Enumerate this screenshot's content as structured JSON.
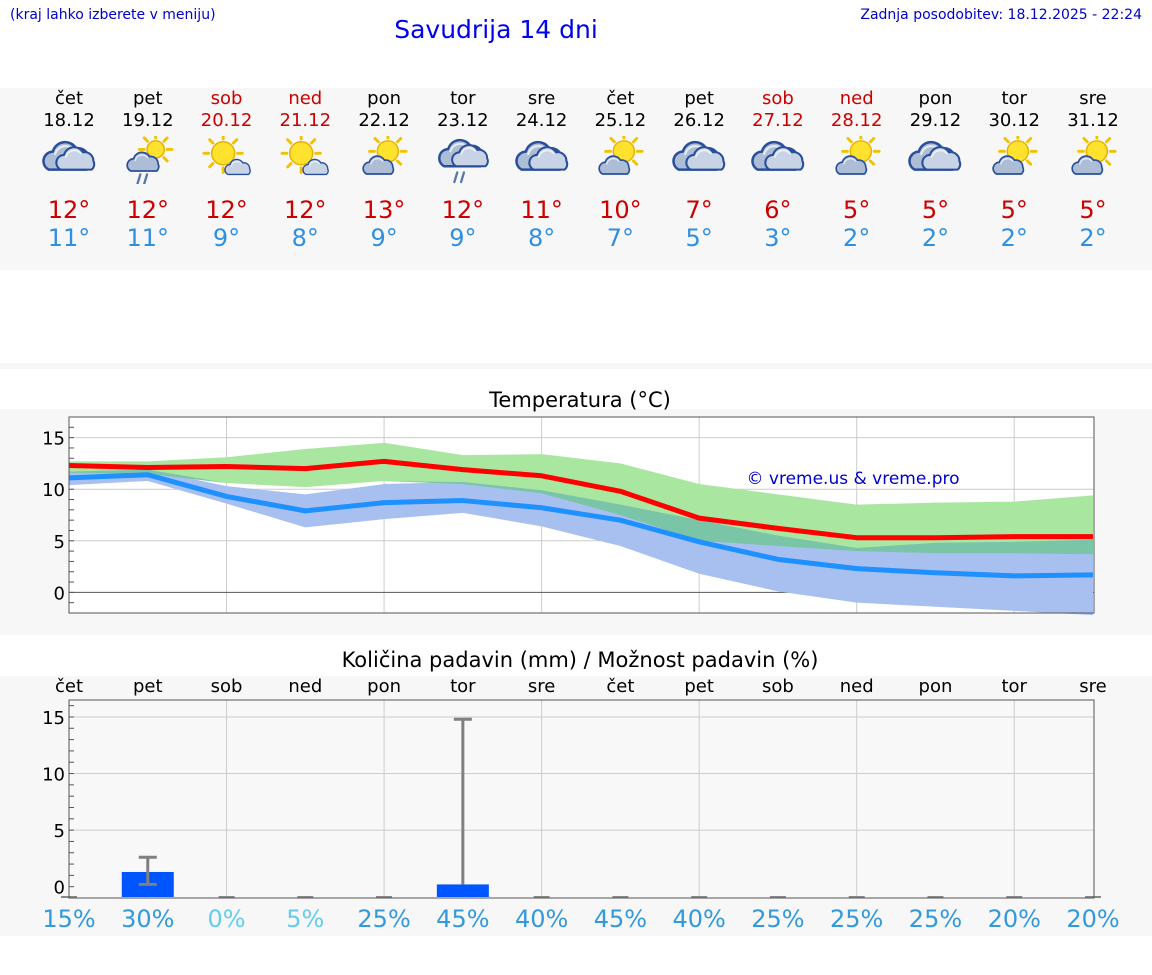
{
  "header": {
    "hint": "(kraj lahko izberete v meniju)",
    "title": "Savudrija 14 dni",
    "updated": "Zadnja posodobitev: 18.12.2025 - 22:24"
  },
  "days": [
    {
      "name": "čet",
      "date": "18.12",
      "weekend": false,
      "icon": "cloudy-icon",
      "tmax": "12°",
      "tmin": "11°"
    },
    {
      "name": "pet",
      "date": "19.12",
      "weekend": false,
      "icon": "sun-cloud-rain-icon",
      "tmax": "12°",
      "tmin": "11°"
    },
    {
      "name": "sob",
      "date": "20.12",
      "weekend": true,
      "icon": "sun-small-cloud-icon",
      "tmax": "12°",
      "tmin": "9°"
    },
    {
      "name": "ned",
      "date": "21.12",
      "weekend": true,
      "icon": "sun-small-cloud-icon",
      "tmax": "12°",
      "tmin": "8°"
    },
    {
      "name": "pon",
      "date": "22.12",
      "weekend": false,
      "icon": "sun-cloud-icon",
      "tmax": "13°",
      "tmin": "9°"
    },
    {
      "name": "tor",
      "date": "23.12",
      "weekend": false,
      "icon": "cloud-rain-icon",
      "tmax": "12°",
      "tmin": "9°"
    },
    {
      "name": "sre",
      "date": "24.12",
      "weekend": false,
      "icon": "cloudy-icon",
      "tmax": "11°",
      "tmin": "8°"
    },
    {
      "name": "čet",
      "date": "25.12",
      "weekend": false,
      "icon": "sun-cloud-icon",
      "tmax": "10°",
      "tmin": "7°"
    },
    {
      "name": "pet",
      "date": "26.12",
      "weekend": false,
      "icon": "cloudy-icon",
      "tmax": "7°",
      "tmin": "5°"
    },
    {
      "name": "sob",
      "date": "27.12",
      "weekend": true,
      "icon": "cloudy-icon",
      "tmax": "6°",
      "tmin": "3°"
    },
    {
      "name": "ned",
      "date": "28.12",
      "weekend": true,
      "icon": "sun-cloud-icon",
      "tmax": "5°",
      "tmin": "2°"
    },
    {
      "name": "pon",
      "date": "29.12",
      "weekend": false,
      "icon": "cloudy-icon",
      "tmax": "5°",
      "tmin": "2°"
    },
    {
      "name": "tor",
      "date": "30.12",
      "weekend": false,
      "icon": "sun-cloud-icon",
      "tmax": "5°",
      "tmin": "2°"
    },
    {
      "name": "sre",
      "date": "31.12",
      "weekend": false,
      "icon": "sun-cloud-icon",
      "tmax": "5°",
      "tmin": "2°"
    }
  ],
  "colors": {
    "max": "#ff0000",
    "min": "#1e90ff",
    "maxBand": "#a9e6a0",
    "minBand": "#a8c0f0",
    "overlap": "#7ac4a8",
    "bar": "#0055ff",
    "err": "#808080",
    "weekend": "#cc0000",
    "prob": "#3399dd",
    "probLow": "#66ccee"
  },
  "chart_data": [
    {
      "type": "line",
      "title": "Temperatura (°C)",
      "watermark": "© vreme.us & vreme.pro",
      "ylim": [
        -2,
        17
      ],
      "yticks": [
        0,
        5,
        10,
        15
      ],
      "x": [
        0,
        1,
        2,
        3,
        4,
        5,
        6,
        7,
        8,
        9,
        10,
        11,
        12,
        13
      ],
      "series": [
        {
          "name": "max",
          "values": [
            12.3,
            12.1,
            12.2,
            12.0,
            12.7,
            11.9,
            11.3,
            9.8,
            7.2,
            6.2,
            5.3,
            5.3,
            5.4,
            5.4
          ]
        },
        {
          "name": "min",
          "values": [
            11.1,
            11.4,
            9.3,
            7.9,
            8.7,
            8.9,
            8.2,
            7.0,
            4.9,
            3.2,
            2.3,
            1.9,
            1.6,
            1.7
          ]
        },
        {
          "name": "max_range_low",
          "values": [
            11.6,
            11.5,
            10.6,
            10.2,
            10.8,
            10.5,
            9.6,
            7.5,
            5.0,
            4.5,
            4.0,
            3.8,
            3.8,
            3.7
          ]
        },
        {
          "name": "max_range_high",
          "values": [
            12.7,
            12.7,
            13.1,
            13.9,
            14.5,
            13.3,
            13.4,
            12.5,
            10.5,
            9.5,
            8.5,
            8.7,
            8.8,
            9.4
          ]
        },
        {
          "name": "min_range_low",
          "values": [
            10.4,
            10.8,
            8.6,
            6.3,
            7.1,
            7.7,
            6.4,
            4.5,
            1.8,
            0.1,
            -1.0,
            -1.4,
            -1.8,
            -2.2
          ]
        },
        {
          "name": "min_range_high",
          "values": [
            11.7,
            11.9,
            10.3,
            9.5,
            10.5,
            10.7,
            9.9,
            8.5,
            7.0,
            5.5,
            4.3,
            4.8,
            4.9,
            5.1
          ]
        }
      ]
    },
    {
      "type": "bar",
      "title": "Količina padavin (mm) / Možnost padavin (%)",
      "ylim": [
        -1,
        16.5
      ],
      "yticks": [
        0,
        5,
        10,
        15
      ],
      "categories": [
        "čet",
        "pet",
        "sob",
        "ned",
        "pon",
        "tor",
        "sre",
        "čet",
        "pet",
        "sob",
        "ned",
        "pon",
        "tor",
        "sre"
      ],
      "values": [
        0,
        1.3,
        0,
        0,
        0,
        0.2,
        0,
        0,
        0,
        0,
        0,
        0,
        0,
        0
      ],
      "error_low": [
        0,
        0.2,
        0,
        0,
        0,
        0,
        0,
        0,
        0,
        0,
        0,
        0,
        0,
        0
      ],
      "error_high": [
        0,
        2.6,
        0,
        0,
        0,
        14.8,
        0,
        0,
        0,
        0,
        0,
        0,
        0,
        0
      ],
      "probability": [
        "15%",
        "30%",
        "0%",
        "5%",
        "25%",
        "45%",
        "40%",
        "45%",
        "40%",
        "25%",
        "25%",
        "25%",
        "20%",
        "20%"
      ]
    }
  ]
}
